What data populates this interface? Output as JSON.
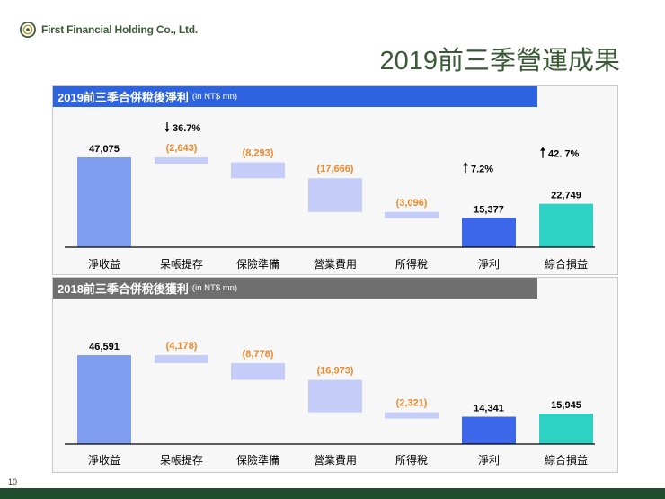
{
  "company": "First Financial Holding Co., Ltd.",
  "page_title": "2019前三季營運成果",
  "page_number": "10",
  "colors": {
    "blue": "#7f9ef0",
    "light": "#c3cdf8",
    "netIncome": "#3d67ea",
    "comprehensive": "#2fd1c4",
    "negative": "#ee8a2e",
    "green": "#1f4d2b"
  },
  "chart_data": [
    {
      "type": "bar",
      "subtype": "waterfall",
      "title": "2019前三季合併稅後淨利",
      "unit": "(in NT$ mn)",
      "categories": [
        "淨收益",
        "呆帳提存",
        "保險準備",
        "營業費用",
        "所得稅",
        "淨利",
        "綜合損益"
      ],
      "values": [
        47075,
        -2643,
        -8293,
        -17666,
        -3096,
        15377,
        22749
      ],
      "labels": [
        "47,075",
        "(2,643)",
        "(8,293)",
        "(17,666)",
        "(3,096)",
        "15,377",
        "22,749"
      ],
      "annotations": [
        {
          "category": "呆帳提存",
          "arrow": "down",
          "text": "36.7%"
        },
        {
          "category": "淨利",
          "arrow": "up",
          "text": "7.2%"
        },
        {
          "category": "綜合損益",
          "arrow": "up",
          "text": "42. 7%"
        }
      ]
    },
    {
      "type": "bar",
      "subtype": "waterfall",
      "title": "2018前三季合併稅後獲利",
      "unit": "(in NT$ mn)",
      "categories": [
        "淨收益",
        "呆帳提存",
        "保險準備",
        "營業費用",
        "所得稅",
        "淨利",
        "綜合損益"
      ],
      "values": [
        46591,
        -4178,
        -8778,
        -16973,
        -2321,
        14341,
        15945
      ],
      "labels": [
        "46,591",
        "(4,178)",
        "(8,778)",
        "(16,973)",
        "(2,321)",
        "14,341",
        "15,945"
      ],
      "annotations": []
    }
  ]
}
